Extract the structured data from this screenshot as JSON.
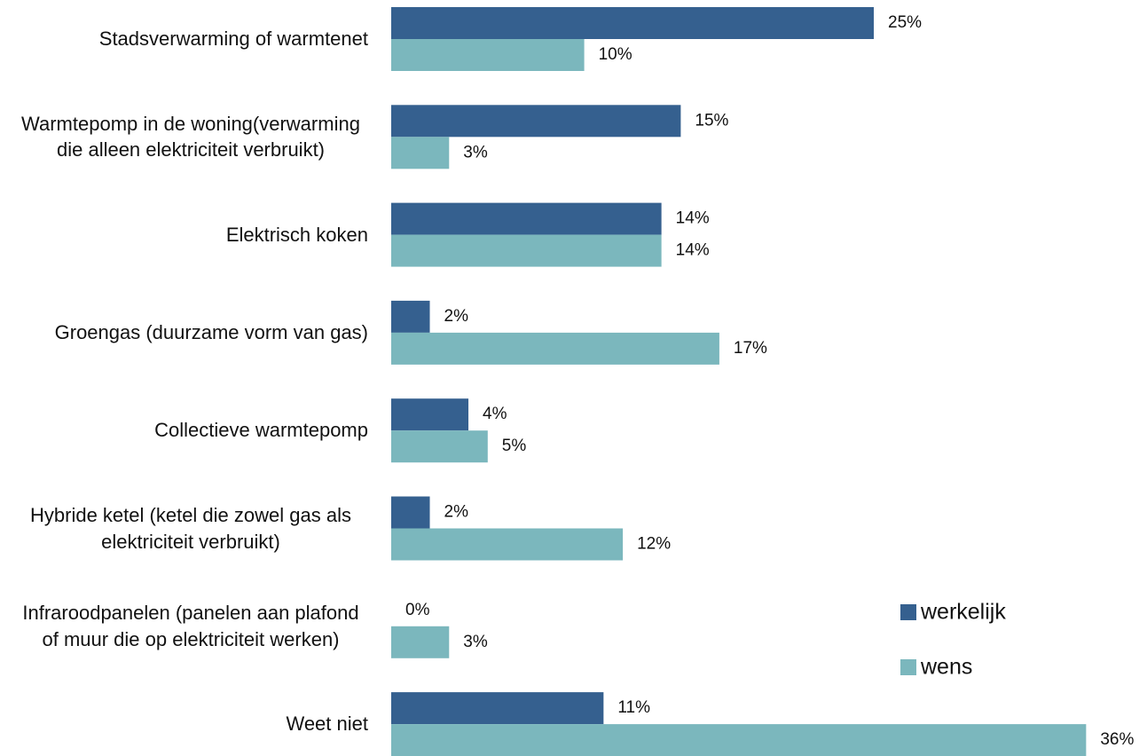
{
  "chart_data": {
    "type": "bar",
    "orientation": "horizontal",
    "categories": [
      "Stadsverwarming of warmtenet",
      "Warmtepomp in de woning(verwarming die alleen elektriciteit verbruikt)",
      "Elektrisch koken",
      "Groengas (duurzame vorm van gas)",
      "Collectieve warmtepomp",
      "Hybride ketel (ketel die zowel gas als elektriciteit verbruikt)",
      "Infraroodpanelen (panelen aan plafond of muur die op elektriciteit werken)",
      "Weet niet"
    ],
    "series": [
      {
        "name": "werkelijk",
        "color": "#35608f",
        "values": [
          25,
          15,
          14,
          2,
          4,
          2,
          0,
          11
        ],
        "value_labels": [
          "25%",
          "15%",
          "14%",
          "2%",
          "4%",
          "2%",
          "0%",
          "11%"
        ]
      },
      {
        "name": "wens",
        "color": "#7bb7bd",
        "values": [
          10,
          3,
          14,
          17,
          5,
          12,
          3,
          36
        ],
        "value_labels": [
          "10%",
          "3%",
          "14%",
          "17%",
          "5%",
          "12%",
          "3%",
          "36%"
        ]
      }
    ],
    "legend": "right"
  }
}
